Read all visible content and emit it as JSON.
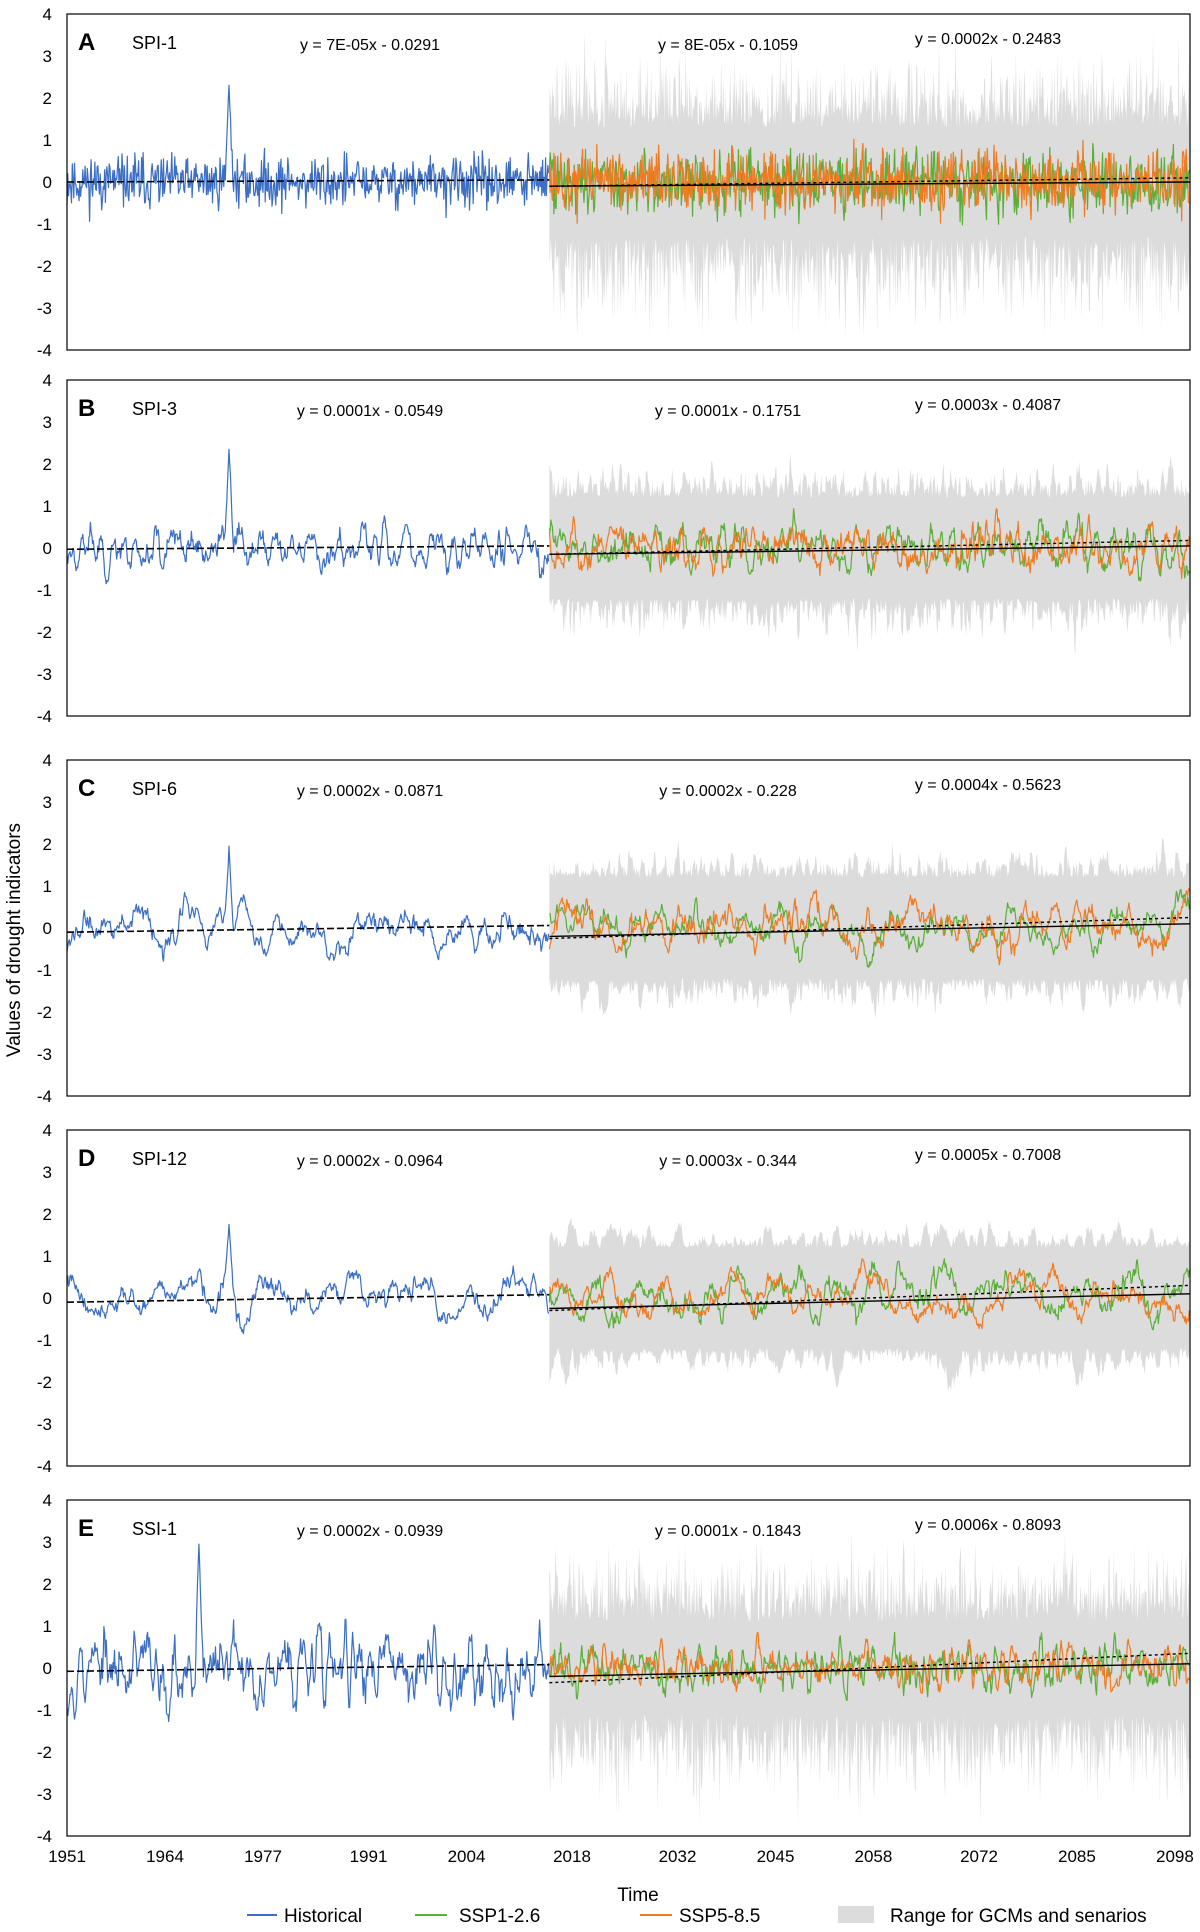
{
  "figure": {
    "ylabel": "Values of drought indicators",
    "xlabel": "Time"
  },
  "colors": {
    "historical": "#3b6ec4",
    "ssp126": "#5cae3a",
    "ssp585": "#ef7b23",
    "range": "#dcdcdc",
    "trend": "#000000",
    "frame": "#000000"
  },
  "legend": {
    "placement": "bottom",
    "items": [
      {
        "key": "historical",
        "label": "Historical",
        "kind": "line"
      },
      {
        "key": "ssp126",
        "label": "SSP1-2.6",
        "kind": "line"
      },
      {
        "key": "ssp585",
        "label": "SSP5-8.5",
        "kind": "line"
      },
      {
        "key": "range",
        "label": "Range for GCMs and senarios",
        "kind": "band"
      }
    ]
  },
  "chart_data": [
    {
      "type": "line",
      "panel": "A",
      "title": "SPI-1",
      "xlim": [
        1951,
        2100
      ],
      "ylim": [
        -4,
        4
      ],
      "yticks": [
        "4",
        "3",
        "2",
        "1",
        "0",
        "-1",
        "-2",
        "-3",
        "-4"
      ],
      "xticks": [],
      "equations": [
        "y = 7E-05x - 0.0291",
        "y = 8E-05x - 0.1059",
        "y = 0.0002x - 0.2483"
      ],
      "amplitude": {
        "historical": 0.55,
        "scenario": 0.6,
        "range": 1.3
      },
      "peak": {
        "year": 1972.5,
        "value": 2.3
      },
      "trend": {
        "historical": [
          0.0,
          0.05
        ],
        "ssp126": [
          -0.1,
          0.0
        ],
        "ssp585": [
          -0.1,
          0.1
        ]
      },
      "smooth": 1,
      "historical_seed": 11
    },
    {
      "type": "line",
      "panel": "B",
      "title": "SPI-3",
      "xlim": [
        1951,
        2100
      ],
      "ylim": [
        -4,
        4
      ],
      "yticks": [
        "4",
        "3",
        "2",
        "1",
        "0",
        "-1",
        "-2",
        "-3",
        "-4"
      ],
      "xticks": [],
      "equations": [
        "y = 0.0001x - 0.0549",
        "y = 0.0001x - 0.1751",
        "y = 0.0003x - 0.4087"
      ],
      "amplitude": {
        "historical": 0.5,
        "scenario": 0.55,
        "range": 1.2
      },
      "peak": {
        "year": 1972.5,
        "value": 2.35
      },
      "trend": {
        "historical": [
          -0.03,
          0.05
        ],
        "ssp126": [
          -0.15,
          0.05
        ],
        "ssp585": [
          -0.15,
          0.18
        ]
      },
      "smooth": 3,
      "historical_seed": 23
    },
    {
      "type": "line",
      "panel": "C",
      "title": "SPI-6",
      "xlim": [
        1951,
        2100
      ],
      "ylim": [
        -4,
        4
      ],
      "yticks": [
        "4",
        "3",
        "2",
        "1",
        "0",
        "-1",
        "-2",
        "-3",
        "-4"
      ],
      "xticks": [],
      "equations": [
        "y = 0.0002x - 0.0871",
        "y = 0.0002x - 0.228",
        "y = 0.0004x - 0.5623"
      ],
      "amplitude": {
        "historical": 0.5,
        "scenario": 0.55,
        "range": 1.2
      },
      "peak": {
        "year": 1972.5,
        "value": 1.95
      },
      "trend": {
        "historical": [
          -0.1,
          0.06
        ],
        "ssp126": [
          -0.2,
          0.1
        ],
        "ssp585": [
          -0.25,
          0.25
        ]
      },
      "smooth": 6,
      "historical_seed": 37
    },
    {
      "type": "line",
      "panel": "D",
      "title": "SPI-12",
      "xlim": [
        1951,
        2100
      ],
      "ylim": [
        -4,
        4
      ],
      "yticks": [
        "4",
        "3",
        "2",
        "1",
        "0",
        "-1",
        "-2",
        "-3",
        "-4"
      ],
      "xticks": [],
      "equations": [
        "y = 0.0002x - 0.0964",
        "y = 0.0003x - 0.344",
        "y = 0.0005x - 0.7008"
      ],
      "amplitude": {
        "historical": 0.5,
        "scenario": 0.55,
        "range": 1.2
      },
      "peak": {
        "year": 1972.5,
        "value": 1.75
      },
      "trend": {
        "historical": [
          -0.1,
          0.08
        ],
        "ssp126": [
          -0.25,
          0.1
        ],
        "ssp585": [
          -0.3,
          0.3
        ]
      },
      "smooth": 10,
      "historical_seed": 41
    },
    {
      "type": "line",
      "panel": "E",
      "title": "SSI-1",
      "xlim": [
        1951,
        2100
      ],
      "ylim": [
        -4,
        4
      ],
      "yticks": [
        "4",
        "3",
        "2",
        "1",
        "0",
        "-1",
        "-2",
        "-3",
        "-4"
      ],
      "xticks": [
        "1951",
        "1964",
        "1977",
        "1991",
        "2004",
        "2018",
        "2032",
        "2045",
        "2058",
        "2072",
        "2085",
        "2098"
      ],
      "equations": [
        "y = 0.0002x - 0.0939",
        "y = 0.0001x - 0.1843",
        "y = 0.0006x - 0.8093"
      ],
      "amplitude": {
        "historical": 0.75,
        "scenario": 0.5,
        "range": 1.1
      },
      "peak": {
        "year": 1968.5,
        "value": 2.95
      },
      "trend": {
        "historical": [
          -0.08,
          0.08
        ],
        "ssp126": [
          -0.2,
          0.1
        ],
        "ssp585": [
          -0.35,
          0.35
        ]
      },
      "smooth": 2,
      "historical_seed": 53
    }
  ]
}
